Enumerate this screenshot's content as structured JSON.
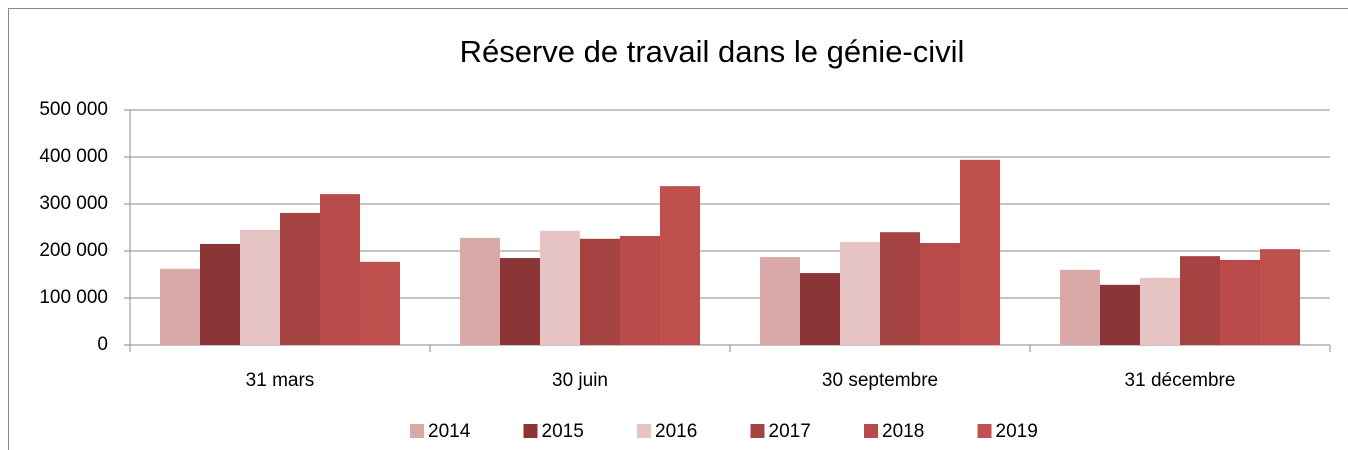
{
  "chart_data": {
    "type": "bar",
    "title": "Réserve de travail dans le génie-civil",
    "categories": [
      "31 mars",
      "30 juin",
      "30 septembre",
      "31 décembre"
    ],
    "series": [
      {
        "name": "2014",
        "color": "#d9a9a8",
        "values": [
          162000,
          228000,
          187000,
          160000
        ]
      },
      {
        "name": "2015",
        "color": "#8b3536",
        "values": [
          215000,
          185000,
          153000,
          128000
        ]
      },
      {
        "name": "2016",
        "color": "#e6c4c3",
        "values": [
          245000,
          243000,
          219000,
          143000
        ]
      },
      {
        "name": "2017",
        "color": "#a44342",
        "values": [
          281000,
          226000,
          240000,
          189000
        ]
      },
      {
        "name": "2018",
        "color": "#b84b49",
        "values": [
          321000,
          232000,
          217000,
          181000
        ]
      },
      {
        "name": "2019",
        "color": "#c0504d",
        "values": [
          177000,
          338000,
          394000,
          204000
        ]
      }
    ],
    "ylim": [
      0,
      500000
    ],
    "yticks": [
      0,
      {
        "value": 100000,
        "label": "100 000"
      },
      {
        "value": 200000,
        "label": "200 000"
      },
      {
        "value": 300000,
        "label": "300 000"
      },
      {
        "value": 400000,
        "label": "400 000"
      },
      {
        "value": 500000,
        "label": "500 000"
      }
    ],
    "grid": true,
    "legend": "bottom"
  }
}
